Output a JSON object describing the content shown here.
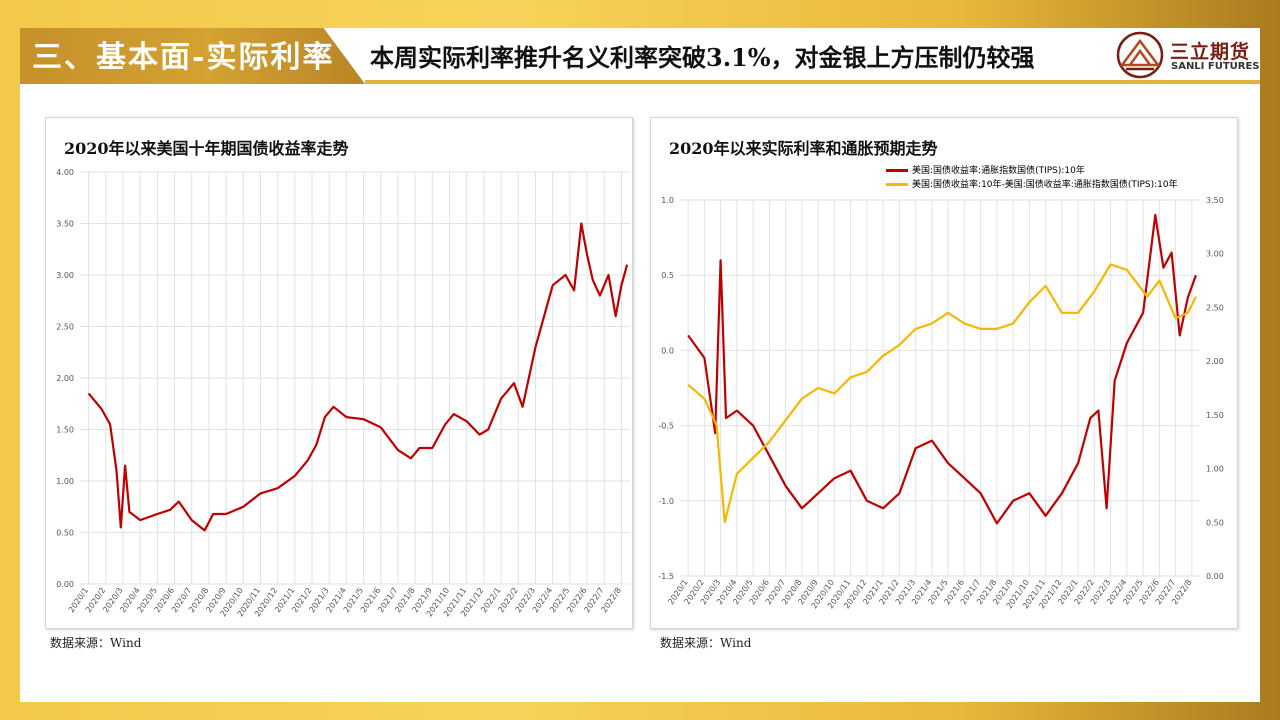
{
  "header": {
    "section_title": "三、基本面-实际利率",
    "headline": "本周实际利率推升名义利率突破3.1%，对金银上方压制仍较强",
    "logo_cn": "三立期货",
    "logo_en": "SANLI FUTURES"
  },
  "colors": {
    "red": "#c00000",
    "gold": "#f5b800",
    "accent": "#d3a232"
  },
  "chart_data": [
    {
      "type": "line",
      "title": "2020年以来美国十年期国债收益率走势",
      "source": "数据来源：Wind",
      "y_ticks": [
        "0.00",
        "0.50",
        "1.00",
        "1.50",
        "2.00",
        "2.50",
        "3.00",
        "3.50",
        "4.00"
      ],
      "ylim": [
        0,
        4
      ],
      "x_ticks": [
        "2020/1",
        "2020/2",
        "2020/3",
        "2020/4",
        "2020/5",
        "2020/6",
        "2020/7",
        "2020/8",
        "2020/9",
        "2020/10",
        "2020/11",
        "2020/12",
        "2021/1",
        "2021/2",
        "2021/3",
        "2021/4",
        "2021/5",
        "2021/6",
        "2021/7",
        "2021/8",
        "2021/9",
        "2021/10",
        "2021/11",
        "2021/12",
        "2022/1",
        "2022/2",
        "2022/3",
        "2022/4",
        "2022/5",
        "2022/6",
        "2022/7",
        "2022/8"
      ],
      "grid": true,
      "series": [
        {
          "color": "#c00000",
          "x": [
            "2020/1",
            "2020/2",
            "2020/2",
            "2020/3",
            "2020/3",
            "2020/3",
            "2020/3",
            "2020/4",
            "2020/5",
            "2020/6",
            "2020/6",
            "2020/7",
            "2020/8",
            "2020/8",
            "2020/9",
            "2020/10",
            "2020/11",
            "2020/12",
            "2021/1",
            "2021/2",
            "2021/2",
            "2021/3",
            "2021/3",
            "2021/4",
            "2021/5",
            "2021/6",
            "2021/7",
            "2021/8",
            "2021/8",
            "2021/9",
            "2021/10",
            "2021/10",
            "2021/11",
            "2021/12",
            "2021/12",
            "2022/1",
            "2022/2",
            "2022/2",
            "2022/3",
            "2022/4",
            "2022/5",
            "2022/5",
            "2022/6",
            "2022/6",
            "2022/6",
            "2022/7",
            "2022/7",
            "2022/8",
            "2022/8",
            "2022/8"
          ],
          "y": [
            1.85,
            1.7,
            1.55,
            1.1,
            0.55,
            1.15,
            0.7,
            0.62,
            0.68,
            0.72,
            0.8,
            0.62,
            0.52,
            0.68,
            0.68,
            0.75,
            0.88,
            0.93,
            1.05,
            1.2,
            1.35,
            1.62,
            1.72,
            1.62,
            1.6,
            1.52,
            1.3,
            1.22,
            1.32,
            1.32,
            1.55,
            1.65,
            1.58,
            1.45,
            1.5,
            1.8,
            1.95,
            1.72,
            2.3,
            2.9,
            3.0,
            2.85,
            3.5,
            3.2,
            2.95,
            2.8,
            3.0,
            2.6,
            2.9,
            3.1
          ]
        }
      ]
    },
    {
      "type": "line",
      "title": "2020年以来实际利率和通胀预期走势",
      "source": "数据来源：Wind",
      "y_ticks_left": [
        "-1.5",
        "-1.0",
        "-0.5",
        "0.0",
        "0.5",
        "1.0"
      ],
      "ylim_left": [
        -1.5,
        1.0
      ],
      "y_ticks_right": [
        "0.00",
        "0.50",
        "1.00",
        "1.50",
        "2.00",
        "2.50",
        "3.00",
        "3.50"
      ],
      "ylim_right": [
        0,
        3.5
      ],
      "x_ticks": [
        "2020/1",
        "2020/2",
        "2020/3",
        "2020/4",
        "2020/5",
        "2020/6",
        "2020/7",
        "2020/8",
        "2020/9",
        "2020/10",
        "2020/11",
        "2020/12",
        "2021/1",
        "2021/2",
        "2021/3",
        "2021/4",
        "2021/5",
        "2021/6",
        "2021/7",
        "2021/8",
        "2021/9",
        "2021/10",
        "2021/11",
        "2021/12",
        "2022/1",
        "2022/2",
        "2022/3",
        "2022/4",
        "2022/5",
        "2022/6",
        "2022/7",
        "2022/8"
      ],
      "grid": true,
      "legend_placement": "top-right",
      "series": [
        {
          "name": "美国:国债收益率:通胀指数国债(TIPS):10年",
          "axis": "left",
          "color": "#c00000",
          "x": [
            "2020/1",
            "2020/2",
            "2020/3",
            "2020/3",
            "2020/3",
            "2020/4",
            "2020/5",
            "2020/6",
            "2020/7",
            "2020/8",
            "2020/9",
            "2020/10",
            "2020/11",
            "2020/12",
            "2021/1",
            "2021/2",
            "2021/3",
            "2021/4",
            "2021/5",
            "2021/6",
            "2021/7",
            "2021/8",
            "2021/9",
            "2021/10",
            "2021/11",
            "2021/12",
            "2022/1",
            "2022/2",
            "2022/2",
            "2022/3",
            "2022/3",
            "2022/4",
            "2022/5",
            "2022/6",
            "2022/6",
            "2022/7",
            "2022/7",
            "2022/8",
            "2022/8"
          ],
          "y": [
            0.1,
            -0.05,
            -0.55,
            0.6,
            -0.45,
            -0.4,
            -0.5,
            -0.7,
            -0.9,
            -1.05,
            -0.95,
            -0.85,
            -0.8,
            -1.0,
            -1.05,
            -0.95,
            -0.65,
            -0.6,
            -0.75,
            -0.85,
            -0.95,
            -1.15,
            -1.0,
            -0.95,
            -1.1,
            -0.95,
            -0.75,
            -0.45,
            -0.4,
            -1.05,
            -0.2,
            0.05,
            0.25,
            0.9,
            0.55,
            0.65,
            0.1,
            0.35,
            0.5
          ]
        },
        {
          "name": "美国:国债收益率:10年-美国:国债收益率:通胀指数国债(TIPS):10年",
          "axis": "right",
          "color": "#f5b800",
          "x": [
            "2020/1",
            "2020/2",
            "2020/3",
            "2020/3",
            "2020/4",
            "2020/5",
            "2020/6",
            "2020/7",
            "2020/8",
            "2020/9",
            "2020/10",
            "2020/11",
            "2020/12",
            "2021/1",
            "2021/2",
            "2021/3",
            "2021/4",
            "2021/5",
            "2021/6",
            "2021/7",
            "2021/8",
            "2021/9",
            "2021/10",
            "2021/11",
            "2021/12",
            "2022/1",
            "2022/2",
            "2022/3",
            "2022/4",
            "2022/5",
            "2022/5",
            "2022/6",
            "2022/7",
            "2022/8",
            "2022/8"
          ],
          "y": [
            1.78,
            1.65,
            1.4,
            0.5,
            0.95,
            1.1,
            1.25,
            1.45,
            1.65,
            1.75,
            1.7,
            1.85,
            1.9,
            2.05,
            2.15,
            2.3,
            2.35,
            2.45,
            2.35,
            2.3,
            2.3,
            2.35,
            2.55,
            2.7,
            2.45,
            2.45,
            2.65,
            2.9,
            2.85,
            2.7,
            2.6,
            2.75,
            2.4,
            2.45,
            2.6
          ]
        }
      ]
    }
  ]
}
